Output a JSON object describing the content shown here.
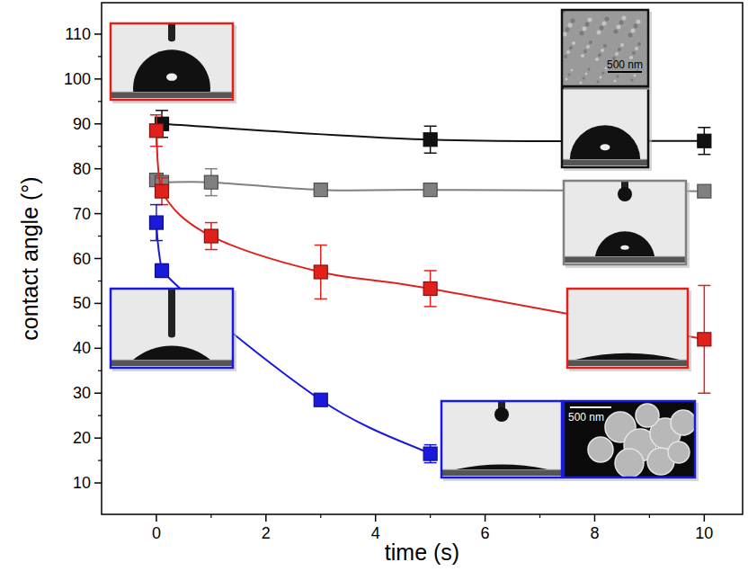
{
  "chart_data": {
    "type": "line",
    "x_label": "time (s)",
    "y_label": "contact angle (°)",
    "xlim": [
      -1,
      10.7
    ],
    "ylim": [
      3,
      117
    ],
    "xticks": [
      0,
      2,
      4,
      6,
      8,
      10
    ],
    "yticks": [
      10,
      20,
      30,
      40,
      50,
      60,
      70,
      80,
      90,
      100,
      110
    ],
    "marker": "square",
    "annotations": [
      "500 nm",
      "500 nm"
    ],
    "series": [
      {
        "color": "#111111",
        "x": [
          0.1,
          5,
          10
        ],
        "values": [
          90,
          86.5,
          86.2
        ],
        "errors": [
          3,
          3,
          3
        ]
      },
      {
        "color": "#808080",
        "x": [
          0,
          0.1,
          1,
          3,
          5,
          10
        ],
        "values": [
          77.5,
          77,
          77,
          75.3,
          75.3,
          75
        ],
        "errors": [
          1,
          1,
          3,
          1,
          1,
          1
        ]
      },
      {
        "color": "#e0201b",
        "x": [
          0,
          0.1,
          1,
          3,
          5,
          10
        ],
        "values": [
          88.5,
          75,
          65,
          57,
          53.3,
          42
        ],
        "errors": [
          3.5,
          3,
          3,
          6,
          4,
          12
        ]
      },
      {
        "color": "#1a1adc",
        "x": [
          0,
          0.1,
          3,
          5
        ],
        "values": [
          68,
          57.3,
          28.5,
          16.5
        ],
        "errors": [
          4,
          1.5,
          1,
          2
        ]
      }
    ]
  }
}
